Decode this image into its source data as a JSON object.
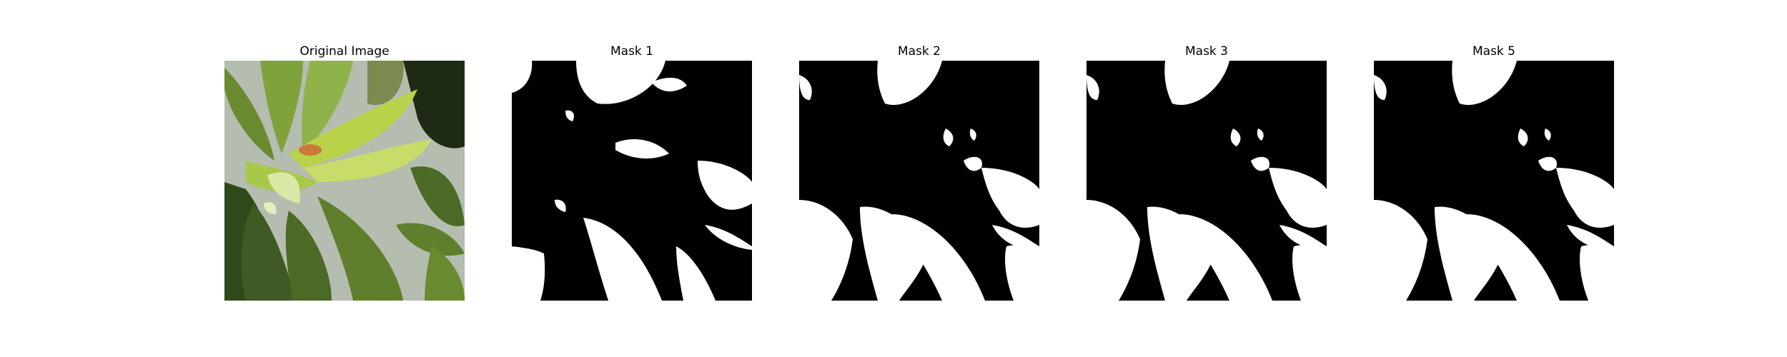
{
  "panels": [
    {
      "title": "Original Image",
      "kind": "photo",
      "alt": ""
    },
    {
      "title": "Mask 1",
      "kind": "mask"
    },
    {
      "title": "Mask 2",
      "kind": "mask"
    },
    {
      "title": "Mask 3",
      "kind": "mask"
    },
    {
      "title": "Mask 5",
      "kind": "mask"
    }
  ],
  "colors": {
    "mask_foreground": "#ffffff",
    "mask_background": "#000000",
    "photo_wall": "#b5bcb0",
    "photo_leaf_dark": "#3f5a22",
    "photo_leaf_mid": "#5f7f2c",
    "photo_leaf_light": "#b8d24a",
    "photo_leaf_pale": "#dbe9a6"
  }
}
